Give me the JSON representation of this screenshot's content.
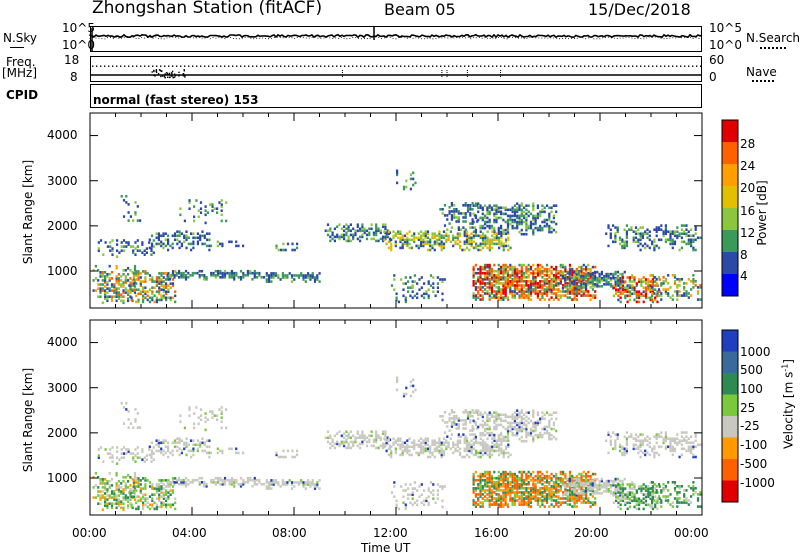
{
  "header": {
    "station": "Zhongshan Station (fitACF)",
    "beam": "Beam 05",
    "date": "15/Dec/2018"
  },
  "left_labels": {
    "nsky": "N.Sky",
    "freq": "Freq.",
    "mhz": "[MHz]",
    "cpid": "CPID"
  },
  "right_labels": {
    "nsearch": "N.Search",
    "nave": "Nave"
  },
  "cpid_text": "normal (fast stereo) 153",
  "noise_ticks_left": [
    "10^5",
    "10^0"
  ],
  "noise_ticks_right": [
    "10^5",
    "10^0"
  ],
  "freq_ticks_left": [
    "18",
    "8"
  ],
  "freq_ticks_right": [
    "60",
    "0"
  ],
  "chart_data": [
    {
      "type": "heatmap",
      "name": "power",
      "ylabel": "Slant Range [km]",
      "yticks": [
        "4000",
        "3000",
        "2000",
        "1000"
      ],
      "xticks": [
        "00:00",
        "04:00",
        "08:00",
        "12:00",
        "16:00",
        "20:00",
        "00:00"
      ],
      "colorbar_label": "Power [dB]",
      "colorbar_ticks": [
        "28",
        "24",
        "20",
        "16",
        "12",
        "8",
        "4"
      ],
      "colorbar_colors": [
        "#e00000",
        "#ff6000",
        "#ffa000",
        "#e0c000",
        "#8cc63f",
        "#3a9a5a",
        "#2b4aa8",
        "#0000ff"
      ],
      "ylim": [
        180,
        4500
      ],
      "xlim": [
        0,
        24
      ]
    },
    {
      "type": "heatmap",
      "name": "velocity",
      "ylabel": "Slant Range [km]",
      "yticks": [
        "4000",
        "3000",
        "2000",
        "1000"
      ],
      "xticks": [
        "00:00",
        "04:00",
        "08:00",
        "12:00",
        "16:00",
        "20:00",
        "00:00"
      ],
      "xlabel": "Time UT",
      "colorbar_label": "Velocity [m s^-1]",
      "colorbar_ticks": [
        "1000",
        "500",
        "100",
        "25",
        "-25",
        "-100",
        "-500",
        "-1000"
      ],
      "colorbar_colors": [
        "#1f3fbf",
        "#3a6a9a",
        "#2f8a52",
        "#7ac83c",
        "#c8c8c0",
        "#ff9a00",
        "#ff6000",
        "#e00000"
      ],
      "ylim": [
        180,
        4500
      ],
      "xlim": [
        0,
        24
      ]
    }
  ]
}
